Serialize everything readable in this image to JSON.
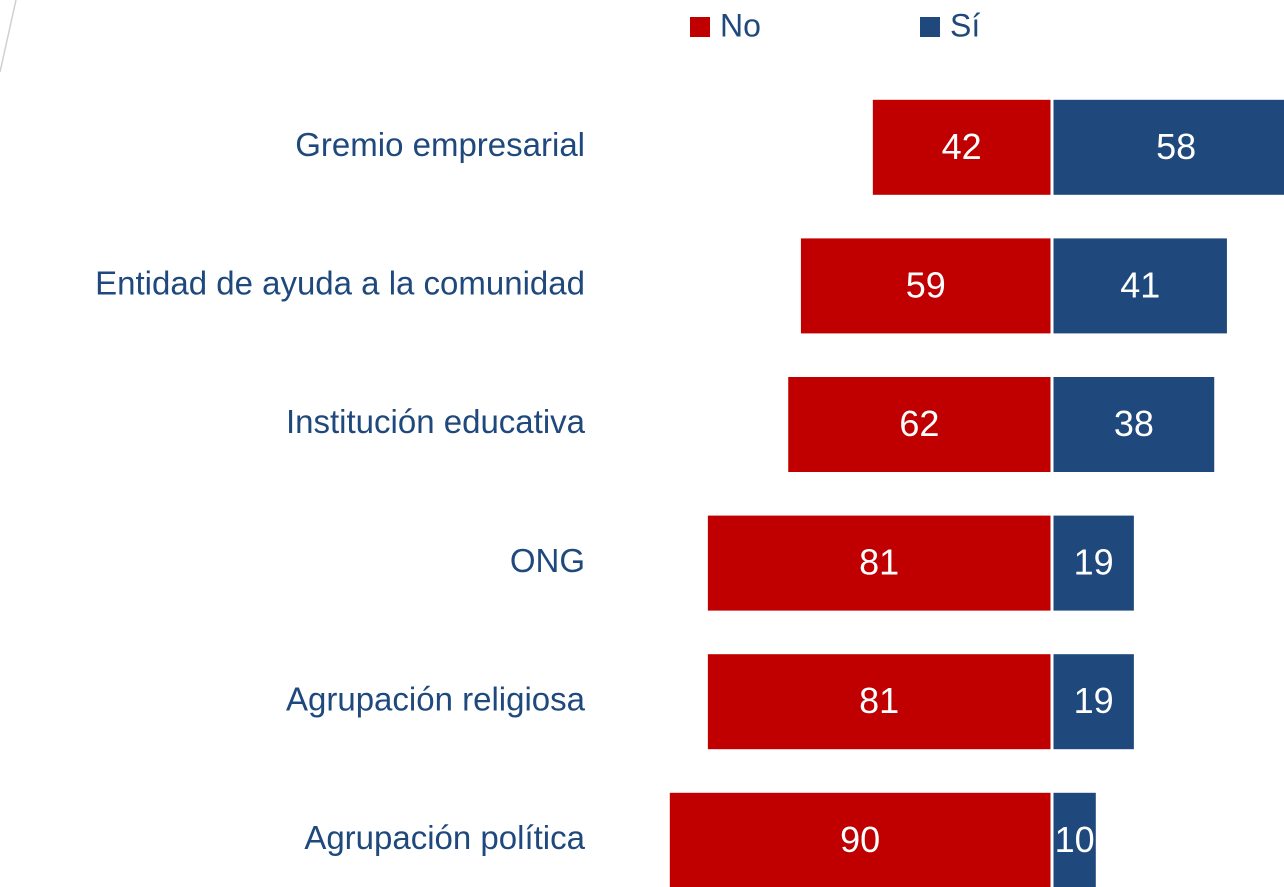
{
  "chart_data": {
    "type": "bar",
    "orientation": "horizontal",
    "diverging": true,
    "categories": [
      "Gremio empresarial",
      "Entidad de ayuda a la comunidad",
      "Institución educativa",
      "ONG",
      "Agrupación religiosa",
      "Agrupación política"
    ],
    "series": [
      {
        "name": "No",
        "color": "#c00000",
        "values": [
          42,
          59,
          62,
          81,
          81,
          90
        ]
      },
      {
        "name": "Sí",
        "color": "#1f497d",
        "values": [
          58,
          41,
          38,
          19,
          19,
          10
        ]
      }
    ],
    "legend": "top"
  }
}
